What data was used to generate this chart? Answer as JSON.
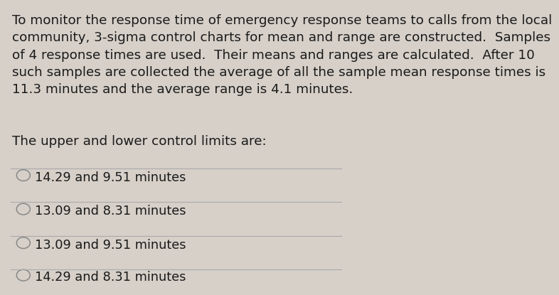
{
  "background_color": "#d6d0c8",
  "paragraph_text": "To monitor the response time of emergency response teams to calls from the local\ncommunity, 3-sigma control charts for mean and range are constructed.  Samples\nof 4 response times are used.  Their means and ranges are calculated.  After 10\nsuch samples are collected the average of all the sample mean response times is\n11.3 minutes and the average range is 4.1 minutes.",
  "question_text": "The upper and lower control limits are:",
  "options": [
    "14.29 and 9.51 minutes",
    "13.09 and 8.31 minutes",
    "13.09 and 9.51 minutes",
    "14.29 and 8.31 minutes"
  ],
  "font_size_paragraph": 13.2,
  "font_size_question": 13.2,
  "font_size_options": 12.8,
  "text_color": "#1a1a1a",
  "line_color": "#aaaaaa",
  "circle_color": "#888888"
}
